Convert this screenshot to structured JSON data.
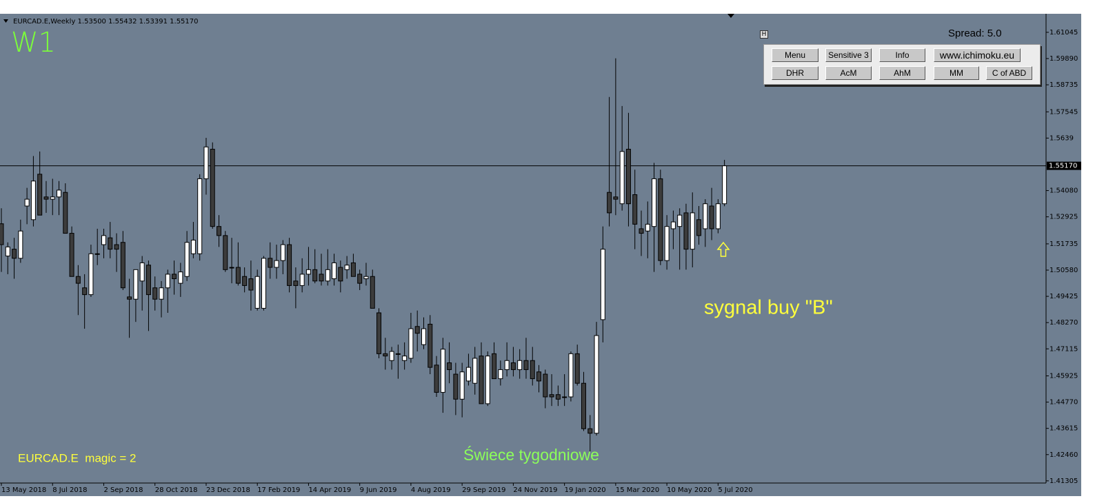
{
  "header": "EURCAD.E,Weekly 1.53500 1.55432 1.53391 1.55170",
  "panel_toggle": "H",
  "spread": "Spread: 5.0",
  "buttons": [
    [
      "Menu",
      "Sensitive 3",
      "Info",
      "www.ichimoku.eu"
    ],
    [
      "DHR",
      "AcM",
      "AhM",
      "MM",
      "C of ABD"
    ]
  ],
  "chart_data": {
    "type": "candlestick",
    "timeframe_label": "W1",
    "annotations": {
      "signal": "sygnal buy \"B\"",
      "caption": "Świece tygodniowe",
      "magic": "EURCAD.E  magic = 2"
    },
    "categories": [
      "13 May 2018",
      null,
      null,
      null,
      null,
      null,
      null,
      null,
      "8 Jul 2018",
      null,
      null,
      null,
      null,
      null,
      null,
      null,
      "2 Sep 2018",
      null,
      null,
      null,
      null,
      null,
      null,
      null,
      "28 Oct 2018",
      null,
      null,
      null,
      null,
      null,
      null,
      null,
      "23 Dec 2018",
      null,
      null,
      null,
      null,
      null,
      null,
      null,
      "17 Feb 2019",
      null,
      null,
      null,
      null,
      null,
      null,
      null,
      "14 Apr 2019",
      null,
      null,
      null,
      null,
      null,
      null,
      null,
      "9 Jun 2019",
      null,
      null,
      null,
      null,
      null,
      null,
      null,
      "4 Aug 2019",
      null,
      null,
      null,
      null,
      null,
      null,
      null,
      "29 Sep 2019",
      null,
      null,
      null,
      null,
      null,
      null,
      null,
      "24 Nov 2019",
      null,
      null,
      null,
      null,
      null,
      null,
      null,
      "19 Jan 2020",
      null,
      null,
      null,
      null,
      null,
      null,
      null,
      "15 Mar 2020",
      null,
      null,
      null,
      null,
      null,
      null,
      null,
      "10 May 2020",
      null,
      null,
      null,
      null,
      null,
      null,
      null,
      "5 Jul 2020",
      null
    ],
    "open": [
      1.5262,
      1.512,
      1.515,
      1.511,
      1.534,
      1.528,
      1.548,
      1.538,
      1.537,
      1.538,
      1.54,
      1.522,
      1.503,
      1.498,
      1.495,
      1.513,
      1.517,
      1.52,
      1.517,
      1.518,
      1.494,
      1.493,
      1.501,
      1.508,
      1.498,
      1.493,
      1.498,
      1.504,
      1.5,
      1.503,
      1.513,
      1.513,
      1.546,
      1.559,
      1.525,
      1.521,
      1.507,
      1.507,
      1.503,
      1.502,
      1.489,
      1.489,
      1.511,
      1.507,
      1.51,
      1.517,
      1.501,
      1.499,
      1.504,
      1.506,
      1.504,
      1.501,
      1.502,
      1.507,
      1.506,
      1.509,
      1.504,
      1.502,
      1.503,
      1.487,
      1.469,
      1.466,
      1.469,
      1.466,
      1.467,
      1.481,
      1.473,
      1.482,
      1.464,
      1.452,
      1.465,
      1.46,
      1.449,
      1.457,
      1.456,
      1.468,
      1.447,
      1.469,
      1.458,
      1.462,
      1.465,
      1.462,
      1.466,
      1.466,
      1.461,
      1.46,
      1.451,
      1.451,
      1.45,
      1.45,
      1.469,
      1.456,
      1.436,
      1.434,
      1.484,
      1.54,
      1.538,
      1.535,
      1.559,
      1.539,
      1.524,
      1.523,
      1.525,
      1.546,
      1.51,
      1.524,
      1.525,
      1.531,
      1.515,
      1.528,
      1.524,
      1.534,
      1.524,
      1.535
    ],
    "high": [
      1.533,
      1.518,
      1.52,
      1.528,
      1.542,
      1.556,
      1.558,
      1.545,
      1.546,
      1.545,
      1.544,
      1.525,
      1.508,
      1.504,
      1.517,
      1.524,
      1.524,
      1.527,
      1.522,
      1.523,
      1.502,
      1.506,
      1.512,
      1.51,
      1.503,
      1.501,
      1.506,
      1.51,
      1.509,
      1.523,
      1.527,
      1.548,
      1.564,
      1.562,
      1.53,
      1.523,
      1.52,
      1.518,
      1.507,
      1.51,
      1.506,
      1.512,
      1.518,
      1.517,
      1.519,
      1.52,
      1.507,
      1.511,
      1.516,
      1.515,
      1.513,
      1.515,
      1.513,
      1.51,
      1.512,
      1.513,
      1.506,
      1.509,
      1.506,
      1.489,
      1.476,
      1.472,
      1.473,
      1.474,
      1.487,
      1.488,
      1.485,
      1.486,
      1.468,
      1.476,
      1.474,
      1.465,
      1.465,
      1.469,
      1.472,
      1.474,
      1.47,
      1.474,
      1.466,
      1.474,
      1.472,
      1.471,
      1.476,
      1.472,
      1.464,
      1.462,
      1.46,
      1.455,
      1.46,
      1.47,
      1.473,
      1.461,
      1.442,
      1.483,
      1.525,
      1.582,
      1.599,
      1.578,
      1.575,
      1.55,
      1.532,
      1.536,
      1.553,
      1.55,
      1.53,
      1.532,
      1.533,
      1.535,
      1.54,
      1.534,
      1.537,
      1.542,
      1.537,
      1.55432
    ],
    "low": [
      1.505,
      1.504,
      1.502,
      1.509,
      1.526,
      1.525,
      1.53,
      1.531,
      1.53,
      1.53,
      1.523,
      1.503,
      1.486,
      1.48,
      1.494,
      1.508,
      1.511,
      1.511,
      1.505,
      1.497,
      1.476,
      1.483,
      1.488,
      1.479,
      1.488,
      1.485,
      1.487,
      1.495,
      1.494,
      1.501,
      1.511,
      1.51,
      1.539,
      1.524,
      1.516,
      1.505,
      1.5,
      1.499,
      1.496,
      1.488,
      1.488,
      1.488,
      1.502,
      1.502,
      1.504,
      1.496,
      1.489,
      1.496,
      1.499,
      1.5,
      1.499,
      1.499,
      1.499,
      1.496,
      1.502,
      1.503,
      1.497,
      1.499,
      1.489,
      1.467,
      1.462,
      1.462,
      1.458,
      1.462,
      1.465,
      1.47,
      1.471,
      1.46,
      1.45,
      1.443,
      1.456,
      1.442,
      1.441,
      1.455,
      1.451,
      1.447,
      1.446,
      1.458,
      1.455,
      1.459,
      1.459,
      1.458,
      1.458,
      1.455,
      1.452,
      1.445,
      1.446,
      1.446,
      1.446,
      1.448,
      1.455,
      1.435,
      1.426,
      1.433,
      1.474,
      1.525,
      1.53,
      1.532,
      1.525,
      1.515,
      1.512,
      1.511,
      1.505,
      1.508,
      1.506,
      1.515,
      1.506,
      1.506,
      1.507,
      1.517,
      1.516,
      1.519,
      1.522,
      1.53391
    ],
    "close": [
      1.517,
      1.516,
      1.511,
      1.523,
      1.537,
      1.545,
      1.53,
      1.537,
      1.538,
      1.541,
      1.522,
      1.503,
      1.5,
      1.495,
      1.513,
      1.513,
      1.521,
      1.515,
      1.515,
      1.498,
      1.493,
      1.506,
      1.509,
      1.495,
      1.493,
      1.498,
      1.504,
      1.502,
      1.505,
      1.518,
      1.519,
      1.546,
      1.56,
      1.525,
      1.521,
      1.506,
      1.507,
      1.5,
      1.499,
      1.497,
      1.503,
      1.511,
      1.507,
      1.51,
      1.517,
      1.499,
      1.499,
      1.504,
      1.506,
      1.501,
      1.501,
      1.506,
      1.509,
      1.501,
      1.508,
      1.503,
      1.5,
      1.503,
      1.489,
      1.469,
      1.468,
      1.47,
      1.469,
      1.468,
      1.48,
      1.478,
      1.48,
      1.463,
      1.452,
      1.471,
      1.462,
      1.449,
      1.461,
      1.463,
      1.467,
      1.447,
      1.468,
      1.458,
      1.462,
      1.466,
      1.462,
      1.466,
      1.462,
      1.458,
      1.457,
      1.45,
      1.45,
      1.449,
      1.45,
      1.469,
      1.456,
      1.436,
      1.434,
      1.477,
      1.515,
      1.531,
      1.537,
      1.558,
      1.535,
      1.526,
      1.522,
      1.526,
      1.546,
      1.51,
      1.525,
      1.527,
      1.53,
      1.515,
      1.531,
      1.521,
      1.535,
      1.524,
      1.535,
      1.5517
    ],
    "bull_color": "#ffffff",
    "bear_color": "#3c3c3c",
    "ylim": [
      1.4124,
      1.6183
    ],
    "yticks": [
      1.61045,
      {
        "value": 1.5989,
        "label": "1.59890"
      },
      1.58735,
      1.57545,
      1.5639,
      {
        "value": 1.5408,
        "label": "1.54080"
      },
      1.52925,
      1.51735,
      {
        "value": 1.5058,
        "label": "1.50580"
      },
      1.49425,
      {
        "value": 1.4827,
        "label": "1.48270"
      },
      1.47115,
      1.45925,
      {
        "value": 1.4477,
        "label": "1.44770"
      },
      1.43615,
      {
        "value": 1.4246,
        "label": "1.42460"
      },
      1.41305
    ],
    "current_price": {
      "value": 1.5517,
      "label": "1.55170"
    }
  }
}
